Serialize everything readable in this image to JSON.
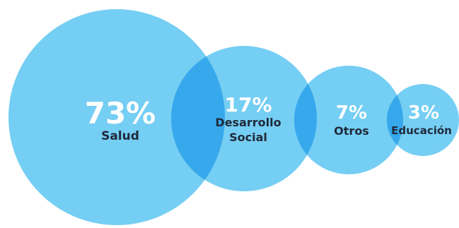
{
  "chart_data": {
    "type": "bubble",
    "title": "",
    "items": [
      {
        "category": "Salud",
        "value_label": "73%",
        "value": 73
      },
      {
        "category": "Desarrollo Social",
        "value_label": "17%",
        "value": 17,
        "label_lines": [
          "Desarrollo",
          "Social"
        ]
      },
      {
        "category": "Otros",
        "value_label": "7%",
        "value": 7
      },
      {
        "category": "Educación",
        "value_label": "3%",
        "value": 3
      }
    ],
    "colors": {
      "bubble": "#75cef3",
      "overlap": "#37a8ec",
      "label": "#1f2a3a",
      "value": "#ffffff"
    }
  }
}
